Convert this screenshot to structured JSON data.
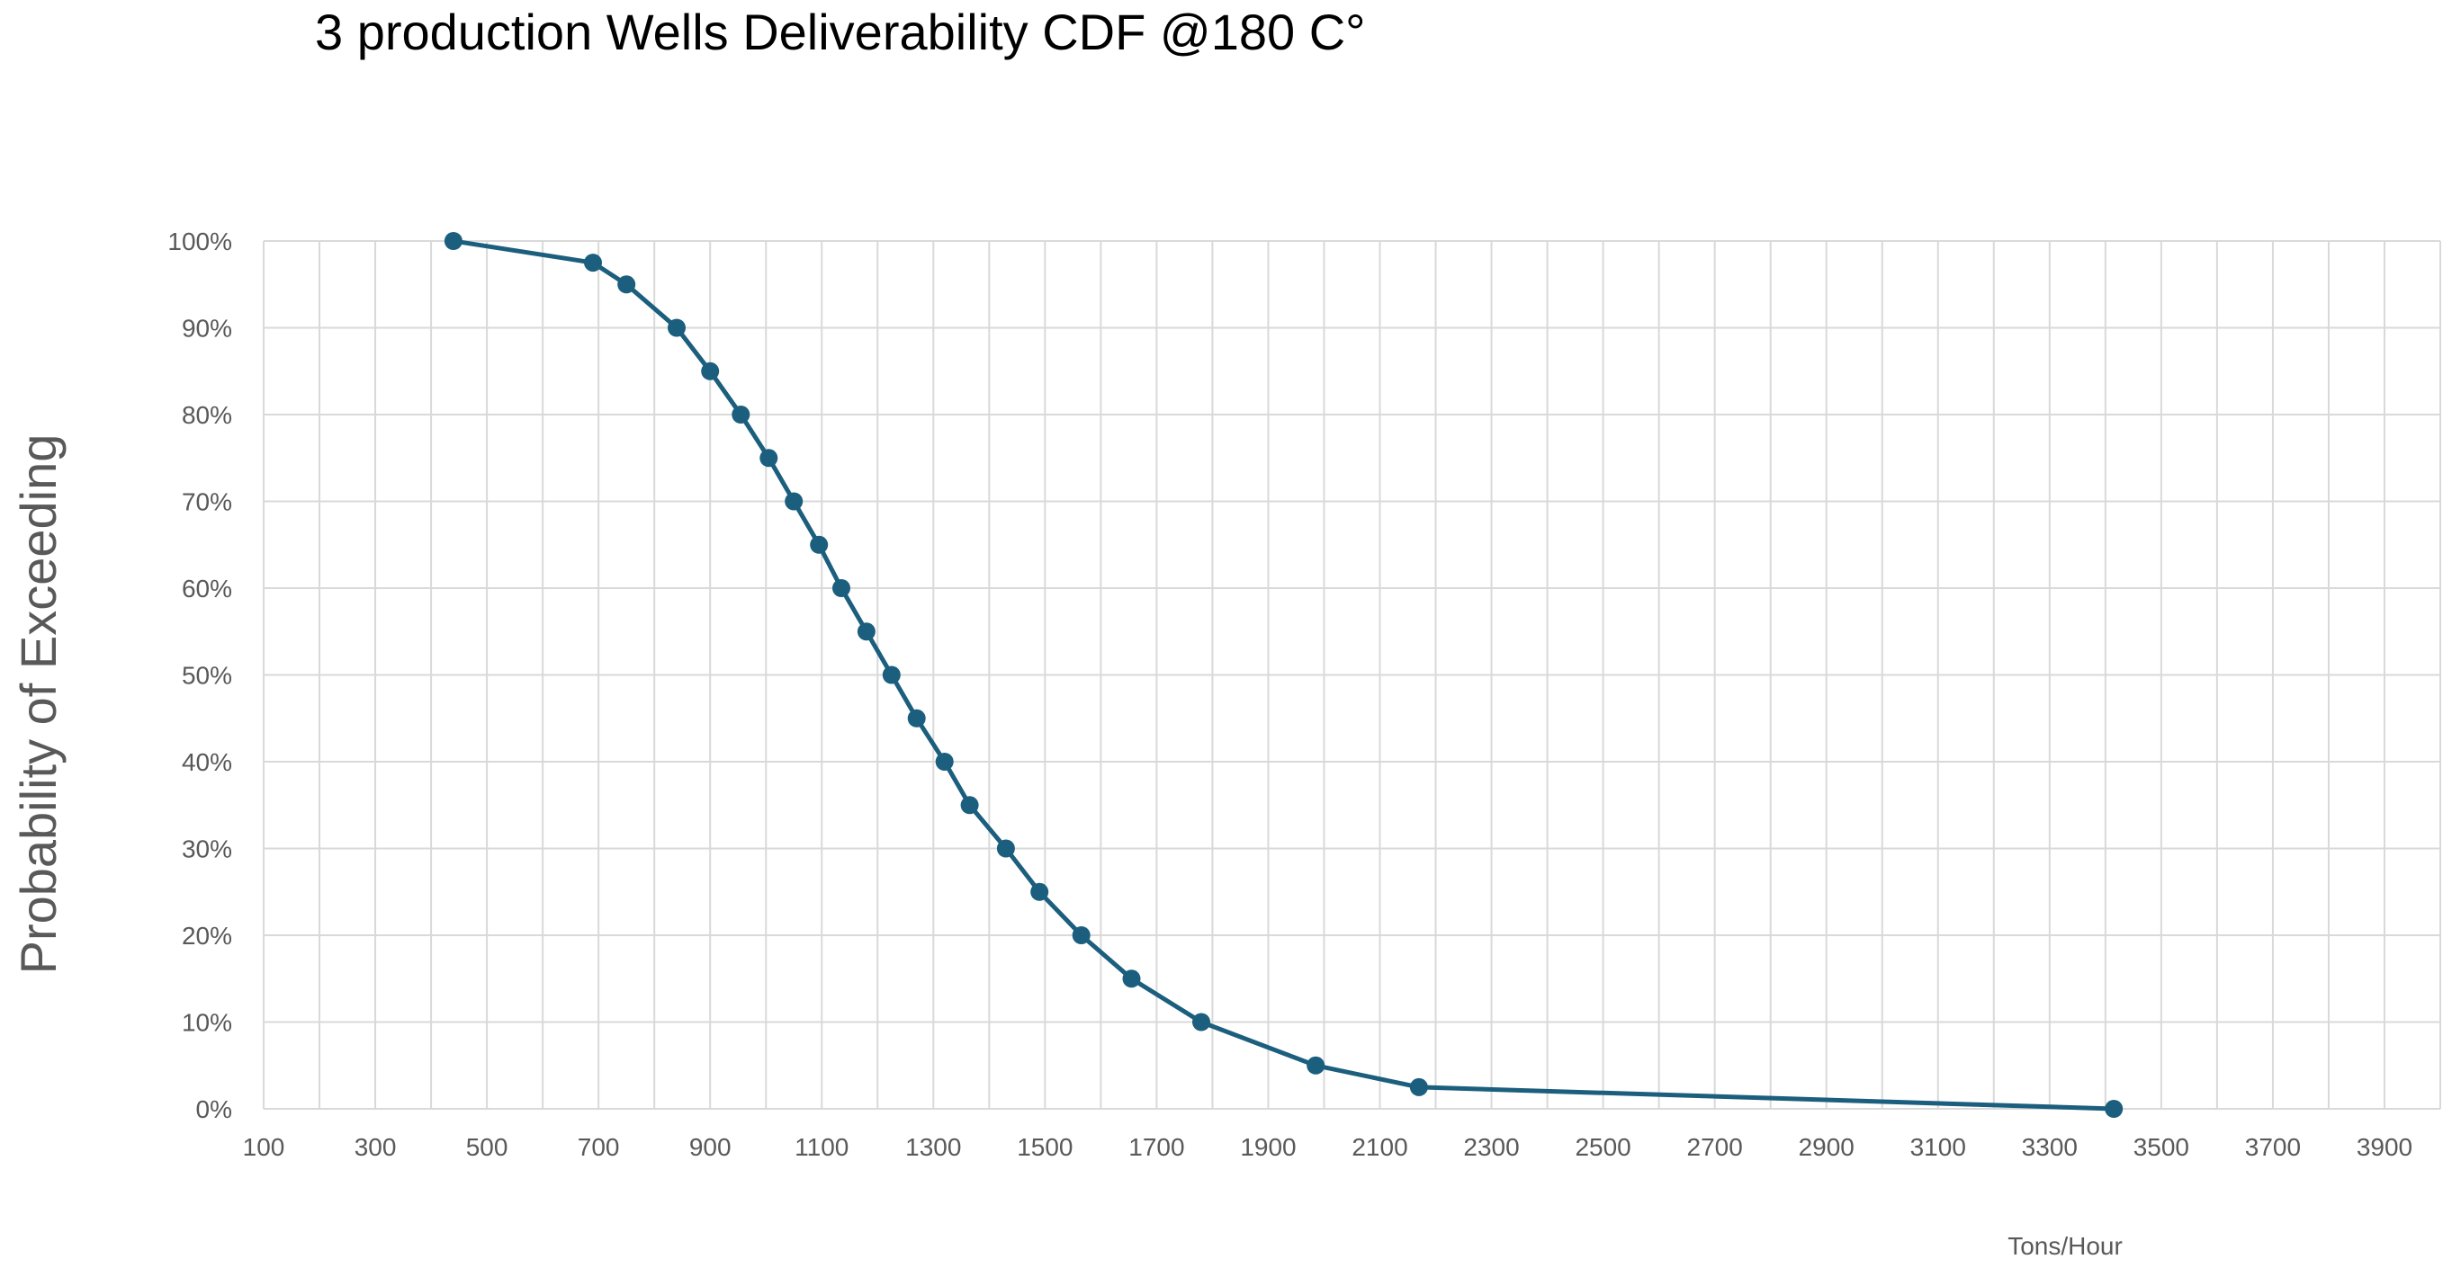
{
  "chart_data": {
    "type": "line",
    "title": "3 production Wells Deliverability CDF @180 C°",
    "xlabel": "Tons/Hour",
    "ylabel": "Probability of Exceeding",
    "xlim": [
      100,
      4000
    ],
    "ylim": [
      0,
      100
    ],
    "x_ticks": [
      100,
      300,
      500,
      700,
      900,
      1100,
      1300,
      1500,
      1700,
      1900,
      2100,
      2300,
      2500,
      2700,
      2900,
      3100,
      3300,
      3500,
      3700,
      3900
    ],
    "x_tick_labels": [
      "100",
      "300",
      "500",
      "700",
      "900",
      "1100",
      "1300",
      "1500",
      "1700",
      "1900",
      "2100",
      "2300",
      "2500",
      "2700",
      "2900",
      "3100",
      "3300",
      "3500",
      "3700",
      "3900"
    ],
    "y_ticks": [
      0,
      10,
      20,
      30,
      40,
      50,
      60,
      70,
      80,
      90,
      100
    ],
    "y_tick_labels": [
      "0%",
      "10%",
      "20%",
      "30%",
      "40%",
      "50%",
      "60%",
      "70%",
      "80%",
      "90%",
      "100%"
    ],
    "grid": true,
    "series": [
      {
        "name": "Deliverability CDF",
        "color": "#1b5e7d",
        "points": [
          {
            "x": 440,
            "y": 100
          },
          {
            "x": 690,
            "y": 97.5
          },
          {
            "x": 750,
            "y": 95
          },
          {
            "x": 840,
            "y": 90
          },
          {
            "x": 900,
            "y": 85
          },
          {
            "x": 955,
            "y": 80
          },
          {
            "x": 1005,
            "y": 75
          },
          {
            "x": 1050,
            "y": 70
          },
          {
            "x": 1095,
            "y": 65
          },
          {
            "x": 1135,
            "y": 60
          },
          {
            "x": 1180,
            "y": 55
          },
          {
            "x": 1225,
            "y": 50
          },
          {
            "x": 1270,
            "y": 45
          },
          {
            "x": 1320,
            "y": 40
          },
          {
            "x": 1365,
            "y": 35
          },
          {
            "x": 1430,
            "y": 30
          },
          {
            "x": 1490,
            "y": 25
          },
          {
            "x": 1565,
            "y": 20
          },
          {
            "x": 1655,
            "y": 15
          },
          {
            "x": 1780,
            "y": 10
          },
          {
            "x": 1985,
            "y": 5
          },
          {
            "x": 2170,
            "y": 2.5
          },
          {
            "x": 3415,
            "y": 0
          }
        ]
      }
    ]
  }
}
